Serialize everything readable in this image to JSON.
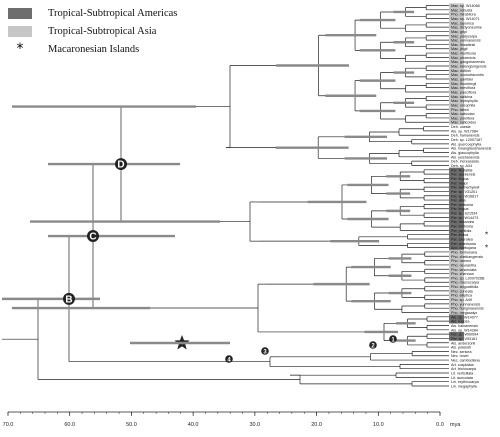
{
  "legend": {
    "americas": {
      "label": "Tropical-Subtropical Americas",
      "color": "#6e6e6e"
    },
    "asia": {
      "label": "Tropical-Subtropical Asia",
      "color": "#c6c6c6"
    },
    "macaronesia": {
      "label": "Macaronesian Islands",
      "symbol": "*"
    }
  },
  "nodes": {
    "B": "B",
    "C": "C",
    "D": "D",
    "numbered": [
      "1",
      "2",
      "3",
      "4"
    ]
  },
  "axis": {
    "ticks": [
      "70.0",
      "60.0",
      "50.0",
      "40.0",
      "30.0",
      "20.0",
      "10.0",
      "0.0"
    ],
    "unit": "mya"
  },
  "taxa": [
    {
      "name": "Mac. sp. W14068",
      "region": "asia"
    },
    {
      "name": "Mac. robusta",
      "region": "asia"
    },
    {
      "name": "Pho. mirabilora",
      "region": "asia"
    },
    {
      "name": "Mac. sp. W14071",
      "region": "asia"
    },
    {
      "name": "Mac. japonica",
      "region": "asia"
    },
    {
      "name": "Mac. dictyoneurine",
      "region": "asia"
    },
    {
      "name": "Mac. gripi",
      "region": "asia"
    },
    {
      "name": "Mac. platycarpa",
      "region": "asia"
    },
    {
      "name": "Mac. yunnanensis",
      "region": "asia"
    },
    {
      "name": "Mac. thwaitesii",
      "region": "asia"
    },
    {
      "name": "Mac. jingii",
      "region": "asia"
    },
    {
      "name": "Mac. monticola",
      "region": "asia"
    },
    {
      "name": "Mac. phoenicis",
      "region": "asia"
    },
    {
      "name": "Mac. gongshanensis",
      "region": "asia"
    },
    {
      "name": "Mac. kwangtungensis",
      "region": "asia"
    },
    {
      "name": "Mac. duthiei",
      "region": "asia"
    },
    {
      "name": "Mac. oculodracontis",
      "region": "asia"
    },
    {
      "name": "Mac. gamblei",
      "region": "asia"
    },
    {
      "name": "Mac. thunbergii",
      "region": "asia"
    },
    {
      "name": "Mac. breviflora",
      "region": "asia"
    },
    {
      "name": "Mac. pauciflora",
      "region": "asia"
    },
    {
      "name": "Mac. salicina",
      "region": "asia"
    },
    {
      "name": "Mac. leptophylla",
      "region": "asia"
    },
    {
      "name": "Mac. oreophila",
      "region": "asia"
    },
    {
      "name": "Pho. faberi",
      "region": "asia"
    },
    {
      "name": "Mac. sabcolax",
      "region": "asia"
    },
    {
      "name": "Mac. pomifera",
      "region": "asia"
    },
    {
      "name": "Mac. salicoides",
      "region": "asia"
    },
    {
      "name": "Deh. caesia",
      "region": "none"
    },
    {
      "name": "Als. sp. W17084",
      "region": "none"
    },
    {
      "name": "Deh. hainanensis",
      "region": "none"
    },
    {
      "name": "Deh. sp. L2007187",
      "region": "none"
    },
    {
      "name": "Als. quercoephylla",
      "region": "none"
    },
    {
      "name": "Als. hwanglianshanensis",
      "region": "none"
    },
    {
      "name": "Als. glaucophylla",
      "region": "none"
    },
    {
      "name": "Als. yuishanensis",
      "region": "none"
    },
    {
      "name": "Deh. increassata",
      "region": "none"
    },
    {
      "name": "Deh. sp. A34",
      "region": "none"
    },
    {
      "name": "Per. fluviatilis",
      "region": "americas"
    },
    {
      "name": "Per. quebensis",
      "region": "americas"
    },
    {
      "name": "Per. lingua",
      "region": "americas"
    },
    {
      "name": "Per. major",
      "region": "americas"
    },
    {
      "name": "Per. wetherbyanii",
      "region": "americas"
    },
    {
      "name": "Per. sp. V31201",
      "region": "americas"
    },
    {
      "name": "Per. sp. W16817",
      "region": "americas"
    },
    {
      "name": "Per. alba",
      "region": "americas"
    },
    {
      "name": "Per. borbonia",
      "region": "americas"
    },
    {
      "name": "Per. lingua",
      "region": "americas"
    },
    {
      "name": "Per. sp. S21534",
      "region": "americas"
    },
    {
      "name": "Per. sp. W14473",
      "region": "americas"
    },
    {
      "name": "Per. hexandra",
      "region": "americas"
    },
    {
      "name": "Per. borbonia",
      "region": "americas"
    },
    {
      "name": "Per. pyrifolia",
      "region": "americas"
    },
    {
      "name": "Per. indica",
      "region": "macaronesia"
    },
    {
      "name": "Per. caerulea",
      "region": "americas"
    },
    {
      "name": "Per. americana",
      "region": "americas"
    },
    {
      "name": "Apo. barbujana",
      "region": "macaronesia"
    },
    {
      "name": "Pho. formosana",
      "region": "asia"
    },
    {
      "name": "Pho. chekiangensis",
      "region": "asia"
    },
    {
      "name": "Pho. nanmu",
      "region": "asia"
    },
    {
      "name": "Pho. neurantha",
      "region": "asia"
    },
    {
      "name": "Pho. lanceolata",
      "region": "asia"
    },
    {
      "name": "Pho. zhennan",
      "region": "asia"
    },
    {
      "name": "Pho. sp. L2007026B",
      "region": "asia"
    },
    {
      "name": "Pho. macrocarpa",
      "region": "asia"
    },
    {
      "name": "Pho. angustifolia",
      "region": "asia"
    },
    {
      "name": "Pho. cuneata",
      "region": "asia"
    },
    {
      "name": "Pho. elliptica",
      "region": "asia"
    },
    {
      "name": "Pho. sp. A49",
      "region": "asia"
    },
    {
      "name": "Pho. yunnanensis",
      "region": "asia"
    },
    {
      "name": "Pho. hungmaoensis",
      "region": "asia"
    },
    {
      "name": "Pho. megacalyx",
      "region": "asia"
    },
    {
      "name": "Als. sp. W14077",
      "region": "americas"
    },
    {
      "name": "Als. rugosa",
      "region": "americas"
    },
    {
      "name": "Als. hainanensis",
      "region": "none"
    },
    {
      "name": "Als. sp. W14284",
      "region": "none"
    },
    {
      "name": "Per. sp. W00094",
      "region": "americas"
    },
    {
      "name": "Per. sp. V93161",
      "region": "americas"
    },
    {
      "name": "Als. andersonii",
      "region": "none"
    },
    {
      "name": "Als. petelotii",
      "region": "none"
    },
    {
      "name": "Nec. sericea",
      "region": "none"
    },
    {
      "name": "Nec. hovei",
      "region": "none"
    },
    {
      "name": "Nec. cambodiana",
      "region": "none"
    },
    {
      "name": "Art. cuspidata",
      "region": "none"
    },
    {
      "name": "Art. trichocarpa",
      "region": "none"
    },
    {
      "name": "Lit. verticillata",
      "region": "none"
    },
    {
      "name": "Lit. auriculata",
      "region": "none"
    },
    {
      "name": "Lin. erythrocarpa",
      "region": "none"
    },
    {
      "name": "Lin. megaphylla",
      "region": "none"
    }
  ]
}
